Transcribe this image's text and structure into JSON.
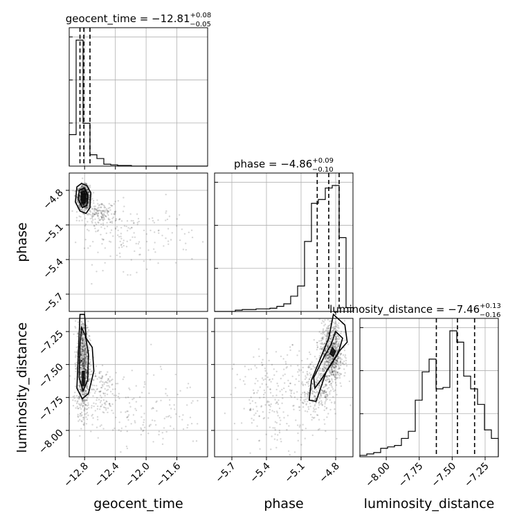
{
  "chart_data": {
    "type": "corner",
    "parameters": [
      "geocent_time",
      "phase",
      "luminosity_distance"
    ],
    "titles": [
      {
        "name": "geocent_time",
        "median": "−12.81",
        "plus": "+0.08",
        "minus": "−0.05"
      },
      {
        "name": "phase",
        "median": "−4.86",
        "plus": "+0.09",
        "minus": "−0.10"
      },
      {
        "name": "luminosity_distance",
        "median": "−7.46",
        "plus": "+0.13",
        "minus": "−0.16"
      }
    ],
    "ranges": [
      [
        -13.0,
        -11.2
      ],
      [
        -5.85,
        -4.65
      ],
      [
        -8.2,
        -7.15
      ]
    ],
    "ticks": [
      {
        "values": [
          -12.8,
          -12.4,
          -12.0,
          -11.6
        ],
        "labels": [
          "−12.8",
          "−12.4",
          "−12.0",
          "−11.6"
        ]
      },
      {
        "values": [
          -5.7,
          -5.4,
          -5.1,
          -4.8
        ],
        "labels": [
          "−5.7",
          "−5.4",
          "−5.1",
          "−4.8"
        ]
      },
      {
        "values": [
          -8.0,
          -7.75,
          -7.5,
          -7.25
        ],
        "labels": [
          "−8.00",
          "−7.75",
          "−7.50",
          "−7.25"
        ]
      }
    ],
    "hist_y_ticks": 3,
    "quantiles": [
      [
        -12.86,
        -12.81,
        -12.73
      ],
      [
        -4.96,
        -4.86,
        -4.77
      ],
      [
        -7.62,
        -7.46,
        -7.33
      ]
    ],
    "histograms": [
      {
        "edges": [
          -13.0,
          -12.91,
          -12.82,
          -12.73,
          -12.64,
          -12.55,
          -12.46,
          -12.37,
          -12.28,
          -12.19,
          -12.1,
          -12.01,
          -11.92,
          -11.83,
          -11.74,
          -11.65,
          -11.56,
          -11.47,
          -11.38,
          -11.29,
          -11.2
        ],
        "counts": [
          0.25,
          1.0,
          0.34,
          0.09,
          0.06,
          0.015,
          0.01,
          0.005,
          0.005,
          0,
          0,
          0,
          0,
          0,
          0,
          0,
          0,
          0,
          0,
          0
        ]
      },
      {
        "edges": [
          -5.85,
          -5.79,
          -5.73,
          -5.67,
          -5.61,
          -5.55,
          -5.49,
          -5.43,
          -5.37,
          -5.31,
          -5.25,
          -5.19,
          -5.13,
          -5.07,
          -5.01,
          -4.95,
          -4.89,
          -4.83,
          -4.77,
          -4.71,
          -4.65
        ],
        "counts": [
          0,
          0,
          0,
          0.01,
          0.015,
          0.015,
          0.02,
          0.02,
          0.025,
          0.04,
          0.06,
          0.12,
          0.2,
          0.55,
          0.85,
          0.88,
          0.97,
          0.99,
          0.58,
          0.03
        ]
      },
      {
        "edges": [
          -8.2,
          -8.1475,
          -8.095,
          -8.0425,
          -7.99,
          -7.9375,
          -7.885,
          -7.8325,
          -7.78,
          -7.7275,
          -7.675,
          -7.6225,
          -7.57,
          -7.5175,
          -7.465,
          -7.4125,
          -7.36,
          -7.3075,
          -7.255,
          -7.2025,
          -7.15
        ],
        "counts": [
          0.01,
          0.02,
          0.03,
          0.06,
          0.07,
          0.08,
          0.13,
          0.18,
          0.4,
          0.6,
          0.69,
          0.48,
          0.49,
          0.89,
          0.81,
          0.57,
          0.48,
          0.37,
          0.19,
          0.13
        ]
      }
    ],
    "scatter_clusters": {
      "phase_vs_geocent_time": [
        {
          "cx": -12.81,
          "cy": -4.86,
          "sx": 0.04,
          "sy": 0.05,
          "n": 900
        },
        {
          "cx": -12.6,
          "cy": -5.0,
          "sx": 0.12,
          "sy": 0.05,
          "n": 160
        },
        {
          "cx": -12.2,
          "cy": -5.2,
          "sx": 0.4,
          "sy": 0.14,
          "n": 170
        }
      ],
      "luminosity_distance_vs_geocent_time": [
        {
          "cx": -12.82,
          "cy": -7.5,
          "sx": 0.04,
          "sy": 0.18,
          "n": 900
        },
        {
          "cx": -12.6,
          "cy": -7.7,
          "sx": 0.12,
          "sy": 0.12,
          "n": 140
        },
        {
          "cx": -12.1,
          "cy": -7.85,
          "sx": 0.45,
          "sy": 0.14,
          "n": 160
        }
      ],
      "luminosity_distance_vs_phase": [
        {
          "cx": -4.84,
          "cy": -7.42,
          "sx": 0.05,
          "sy": 0.12,
          "n": 800
        },
        {
          "cx": -4.97,
          "cy": -7.7,
          "sx": 0.07,
          "sy": 0.12,
          "n": 260
        },
        {
          "cx": -5.3,
          "cy": -7.75,
          "sx": 0.18,
          "sy": 0.18,
          "n": 240
        }
      ]
    },
    "contours": {
      "phase_vs_geocent_time": {
        "outer": [
          [
            -12.9,
            -4.77
          ],
          [
            -12.84,
            -4.74
          ],
          [
            -12.77,
            -4.76
          ],
          [
            -12.72,
            -4.82
          ],
          [
            -12.73,
            -4.95
          ],
          [
            -12.78,
            -5.0
          ],
          [
            -12.86,
            -4.98
          ],
          [
            -12.92,
            -4.9
          ]
        ],
        "inner": [
          [
            -12.87,
            -4.8
          ],
          [
            -12.8,
            -4.78
          ],
          [
            -12.76,
            -4.84
          ],
          [
            -12.77,
            -4.93
          ],
          [
            -12.83,
            -4.95
          ],
          [
            -12.88,
            -4.88
          ]
        ],
        "core": [
          [
            -12.84,
            -4.83
          ],
          [
            -12.79,
            -4.83
          ],
          [
            -12.79,
            -4.91
          ],
          [
            -12.84,
            -4.91
          ]
        ]
      },
      "luminosity_distance_vs_geocent_time": {
        "outer": [
          [
            -12.86,
            -7.12
          ],
          [
            -12.8,
            -7.12
          ],
          [
            -12.78,
            -7.3
          ],
          [
            -12.7,
            -7.37
          ],
          [
            -12.68,
            -7.55
          ],
          [
            -12.75,
            -7.72
          ],
          [
            -12.83,
            -7.76
          ],
          [
            -12.9,
            -7.68
          ],
          [
            -12.88,
            -7.4
          ]
        ],
        "inner": [
          [
            -12.84,
            -7.22
          ],
          [
            -12.79,
            -7.28
          ],
          [
            -12.75,
            -7.42
          ],
          [
            -12.76,
            -7.62
          ],
          [
            -12.82,
            -7.7
          ],
          [
            -12.87,
            -7.6
          ],
          [
            -12.86,
            -7.35
          ]
        ],
        "core": [
          [
            -12.83,
            -7.55
          ],
          [
            -12.8,
            -7.55
          ],
          [
            -12.8,
            -7.66
          ],
          [
            -12.83,
            -7.66
          ]
        ]
      },
      "luminosity_distance_vs_phase": {
        "outer": [
          [
            -4.82,
            -7.12
          ],
          [
            -4.72,
            -7.2
          ],
          [
            -4.7,
            -7.33
          ],
          [
            -4.77,
            -7.4
          ],
          [
            -4.88,
            -7.55
          ],
          [
            -4.97,
            -7.78
          ],
          [
            -5.03,
            -7.77
          ],
          [
            -5.01,
            -7.62
          ],
          [
            -4.93,
            -7.45
          ],
          [
            -4.86,
            -7.3
          ]
        ],
        "inner": [
          [
            -4.8,
            -7.25
          ],
          [
            -4.74,
            -7.3
          ],
          [
            -4.78,
            -7.42
          ],
          [
            -4.93,
            -7.62
          ],
          [
            -4.98,
            -7.68
          ],
          [
            -4.99,
            -7.6
          ],
          [
            -4.9,
            -7.44
          ],
          [
            -4.84,
            -7.35
          ]
        ],
        "core": [
          [
            -4.83,
            -7.37
          ],
          [
            -4.8,
            -7.4
          ],
          [
            -4.82,
            -7.44
          ],
          [
            -4.85,
            -7.42
          ]
        ]
      }
    }
  }
}
